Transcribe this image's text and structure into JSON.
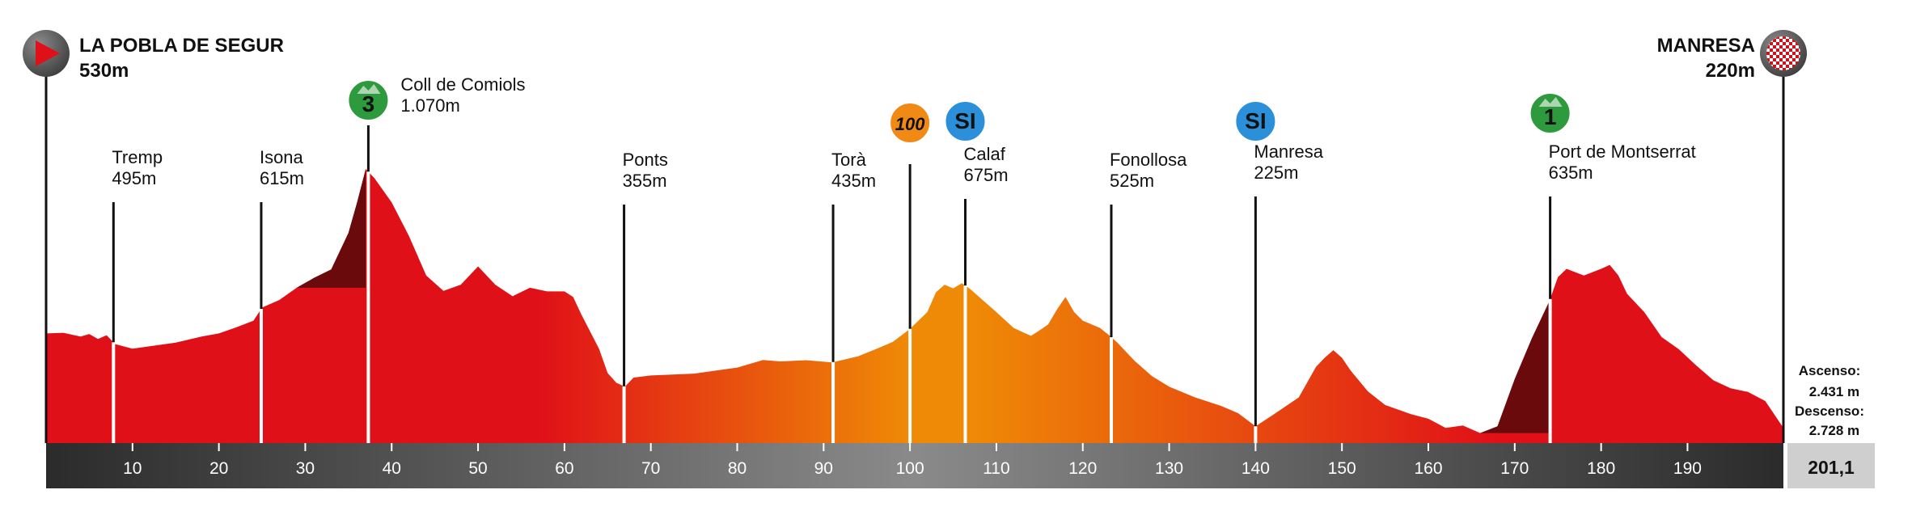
{
  "start": {
    "name": "LA POBLA DE SEGUR",
    "altitude": "530m",
    "icon": "start-flag-icon"
  },
  "finish": {
    "name": "MANRESA",
    "altitude": "220m",
    "icon": "checkered-flag-icon"
  },
  "totals": {
    "ascent_label": "Ascenso:",
    "ascent": "2.431 m",
    "descent_label": "Descenso:",
    "descent": "2.728 m",
    "distance": "201,1"
  },
  "colors": {
    "low": "#e01018",
    "mid": "#ef8a06",
    "climb": "#6a0a0c",
    "axis": "#333333",
    "cat_badge": "#2e9a3e",
    "sprint_badge": "#2b8fd9",
    "bonus_badge": "#f08a14"
  },
  "chart_data": {
    "type": "area",
    "xlabel": "",
    "ylabel": "",
    "xlim": [
      0,
      201.1
    ],
    "ylim": [
      170,
      1200
    ],
    "x_ticks": [
      10,
      20,
      30,
      40,
      50,
      60,
      70,
      80,
      90,
      100,
      110,
      120,
      130,
      140,
      150,
      160,
      170,
      180,
      190
    ],
    "profile": [
      [
        0,
        530
      ],
      [
        2,
        532
      ],
      [
        4,
        520
      ],
      [
        5,
        528
      ],
      [
        6,
        512
      ],
      [
        7,
        524
      ],
      [
        8,
        495
      ],
      [
        10,
        480
      ],
      [
        12,
        488
      ],
      [
        15,
        500
      ],
      [
        18,
        520
      ],
      [
        20,
        530
      ],
      [
        22,
        550
      ],
      [
        24,
        572
      ],
      [
        25,
        615
      ],
      [
        27,
        640
      ],
      [
        29,
        680
      ],
      [
        31,
        712
      ],
      [
        33,
        740
      ],
      [
        35,
        860
      ],
      [
        36,
        960
      ],
      [
        37,
        1070
      ],
      [
        38,
        1040
      ],
      [
        40,
        960
      ],
      [
        42,
        850
      ],
      [
        44,
        720
      ],
      [
        46,
        670
      ],
      [
        48,
        690
      ],
      [
        50,
        750
      ],
      [
        52,
        690
      ],
      [
        54,
        652
      ],
      [
        56,
        680
      ],
      [
        58,
        668
      ],
      [
        60,
        668
      ],
      [
        61,
        650
      ],
      [
        62,
        590
      ],
      [
        64,
        480
      ],
      [
        65,
        400
      ],
      [
        66,
        368
      ],
      [
        67,
        355
      ],
      [
        68,
        385
      ],
      [
        70,
        392
      ],
      [
        75,
        398
      ],
      [
        80,
        418
      ],
      [
        83,
        443
      ],
      [
        85,
        438
      ],
      [
        88,
        442
      ],
      [
        91,
        435
      ],
      [
        94,
        455
      ],
      [
        96,
        478
      ],
      [
        98,
        502
      ],
      [
        100,
        545
      ],
      [
        102,
        600
      ],
      [
        103,
        665
      ],
      [
        104,
        690
      ],
      [
        105,
        678
      ],
      [
        106,
        695
      ],
      [
        107,
        675
      ],
      [
        108,
        650
      ],
      [
        110,
        600
      ],
      [
        112,
        548
      ],
      [
        114,
        522
      ],
      [
        115,
        540
      ],
      [
        116,
        560
      ],
      [
        117,
        608
      ],
      [
        118,
        650
      ],
      [
        119,
        600
      ],
      [
        120,
        572
      ],
      [
        122,
        548
      ],
      [
        123,
        525
      ],
      [
        124,
        500
      ],
      [
        126,
        440
      ],
      [
        128,
        390
      ],
      [
        130,
        355
      ],
      [
        133,
        320
      ],
      [
        136,
        292
      ],
      [
        138,
        268
      ],
      [
        140,
        225
      ],
      [
        142,
        262
      ],
      [
        145,
        320
      ],
      [
        147,
        420
      ],
      [
        148,
        450
      ],
      [
        149,
        475
      ],
      [
        150,
        450
      ],
      [
        151,
        408
      ],
      [
        153,
        340
      ],
      [
        155,
        295
      ],
      [
        158,
        265
      ],
      [
        160,
        250
      ],
      [
        162,
        220
      ],
      [
        164,
        228
      ],
      [
        166,
        203
      ],
      [
        168,
        225
      ],
      [
        170,
        380
      ],
      [
        172,
        515
      ],
      [
        174,
        635
      ],
      [
        175,
        715
      ],
      [
        176,
        742
      ],
      [
        178,
        720
      ],
      [
        180,
        742
      ],
      [
        181,
        755
      ],
      [
        182,
        720
      ],
      [
        183,
        660
      ],
      [
        185,
        600
      ],
      [
        187,
        518
      ],
      [
        189,
        478
      ],
      [
        191,
        425
      ],
      [
        193,
        376
      ],
      [
        195,
        350
      ],
      [
        197,
        338
      ],
      [
        199,
        308
      ],
      [
        201.1,
        220
      ]
    ],
    "climb_segments": [
      [
        29,
        37
      ],
      [
        166,
        174
      ]
    ],
    "orange_zone": [
      67,
      123
    ],
    "waypoints": [
      {
        "km": 7.8,
        "name": "Tremp",
        "altitude": "495m"
      },
      {
        "km": 24.9,
        "name": "Isona",
        "altitude": "615m"
      },
      {
        "km": 37.3,
        "name": "Coll de Comiols",
        "altitude": "1.070m",
        "badge": "3",
        "badge_type": "category"
      },
      {
        "km": 66.9,
        "name": "Ponts",
        "altitude": "355m"
      },
      {
        "km": 91.1,
        "name": "Torà",
        "altitude": "435m"
      },
      {
        "km": 100.0,
        "badge": "100",
        "badge_type": "km"
      },
      {
        "km": 106.4,
        "name": "Calaf",
        "altitude": "675m",
        "badge": "SI",
        "badge_type": "sprint"
      },
      {
        "km": 123.3,
        "name": "Fonollosa",
        "altitude": "525m"
      },
      {
        "km": 140.0,
        "name": "Manresa",
        "altitude": "225m",
        "badge": "SI",
        "badge_type": "sprint"
      },
      {
        "km": 174.1,
        "name": "Port de Montserrat",
        "altitude": "635m",
        "badge": "1",
        "badge_type": "category"
      }
    ]
  }
}
